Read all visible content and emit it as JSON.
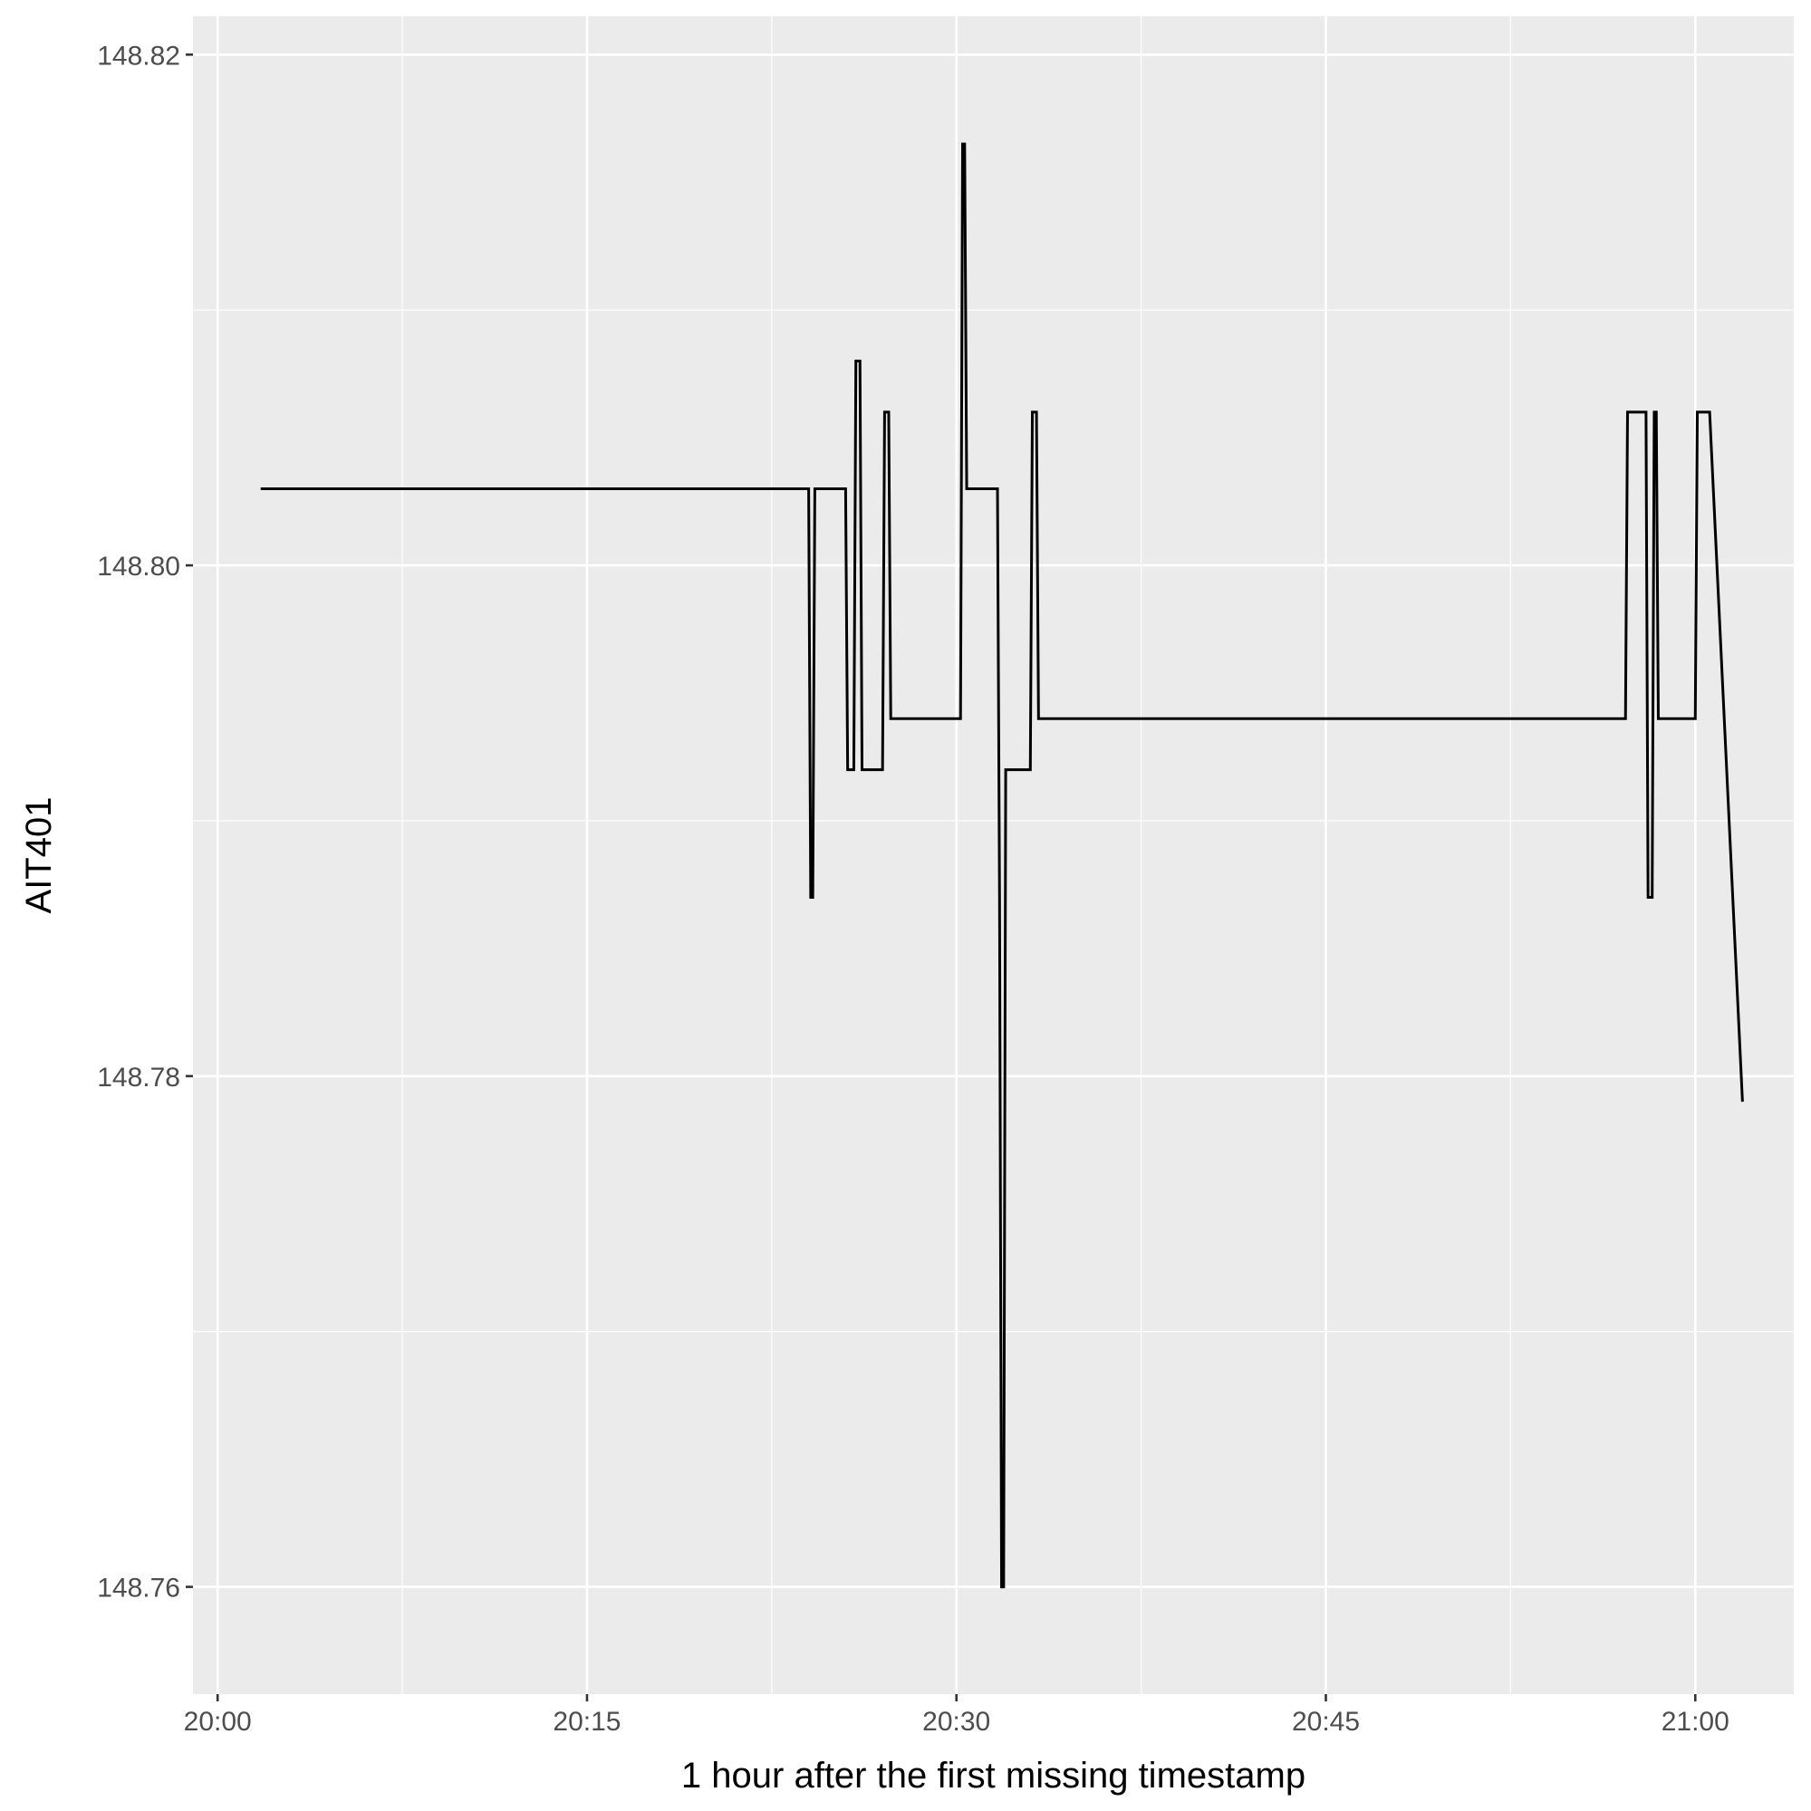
{
  "chart_data": {
    "type": "line",
    "title": "",
    "xlabel": "1 hour after the first missing timestamp",
    "ylabel": "AIT401",
    "x_unit": "clock time (HH:MM)",
    "xlim": [
      "19:59",
      "21:04"
    ],
    "ylim": [
      148.7558,
      148.8215
    ],
    "x_ticks": [
      "20:00",
      "20:15",
      "20:30",
      "20:45",
      "21:00"
    ],
    "y_ticks": [
      "148.76",
      "148.78",
      "148.80",
      "148.82"
    ],
    "grid": true,
    "legend": "none",
    "colors": {
      "panel": "#ebebeb",
      "grid": "#ffffff",
      "line": "#000000",
      "tick_text": "#4d4d4d",
      "title_text": "#000000"
    },
    "series": [
      {
        "x": [
          "20:01:45",
          "20:24:00",
          "20:24:05",
          "20:24:10",
          "20:24:15",
          "20:25:30",
          "20:25:35",
          "20:25:50",
          "20:25:55",
          "20:26:05",
          "20:26:10",
          "20:27:00",
          "20:27:05",
          "20:27:15",
          "20:27:20",
          "20:30:10",
          "20:30:15",
          "20:30:20",
          "20:30:25",
          "20:31:40",
          "20:31:45",
          "20:31:50",
          "20:31:55",
          "20:32:00",
          "20:33:00",
          "20:33:05",
          "20:33:15",
          "20:33:20",
          "20:57:10",
          "20:57:15",
          "20:58:00",
          "20:58:05",
          "20:58:15",
          "20:58:20",
          "20:58:25",
          "20:58:30",
          "21:00:00",
          "21:00:05",
          "21:00:30",
          "21:00:35",
          "21:01:55"
        ],
        "y": [
          148.803,
          148.803,
          148.787,
          148.787,
          148.803,
          148.803,
          148.792,
          148.792,
          148.808,
          148.808,
          148.792,
          148.792,
          148.806,
          148.806,
          148.794,
          148.794,
          148.8165,
          148.8165,
          148.803,
          148.803,
          148.787,
          148.76,
          148.76,
          148.792,
          148.792,
          148.806,
          148.806,
          148.794,
          148.794,
          148.806,
          148.806,
          148.787,
          148.787,
          148.806,
          148.806,
          148.794,
          148.794,
          148.806,
          148.806,
          148.806,
          148.779
        ]
      }
    ]
  }
}
